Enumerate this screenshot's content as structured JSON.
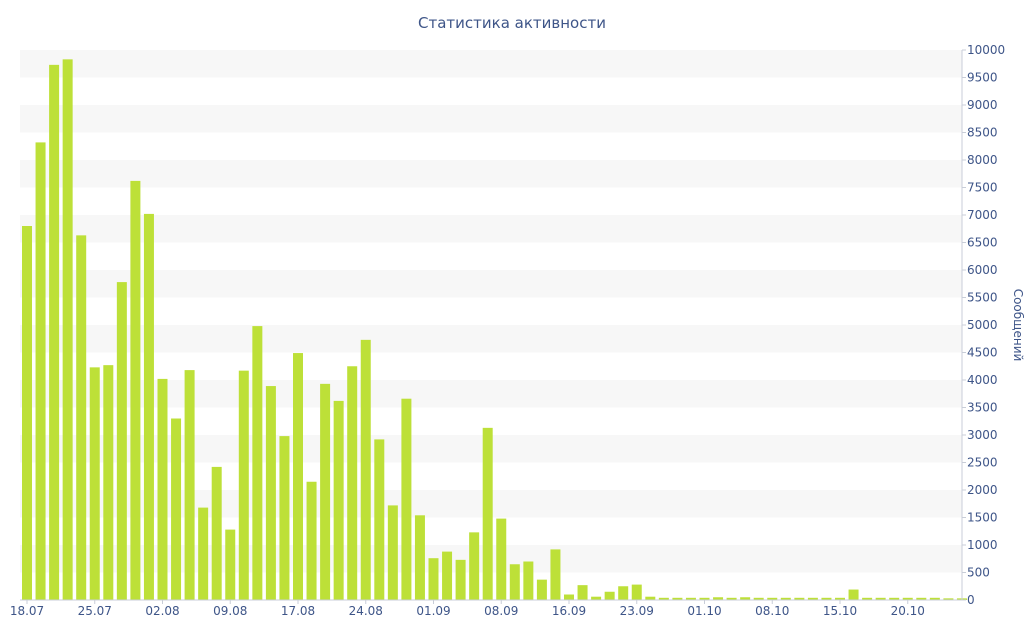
{
  "chart_data": {
    "type": "bar",
    "title": "Статистика активности",
    "ylabel": "Сообщений",
    "xlabel": "",
    "ylim": [
      0,
      10000
    ],
    "yticks": [
      0,
      500,
      1000,
      1500,
      2000,
      2500,
      3000,
      3500,
      4000,
      4500,
      5000,
      5500,
      6000,
      6500,
      7000,
      7500,
      8000,
      8500,
      9000,
      9500,
      10000
    ],
    "y_axis_side": "right",
    "grid": "alternating horizontal bands",
    "bar_color": "#bde038",
    "band_color": "#f7f7f7",
    "text_color": "#3e5588",
    "x_tick_labels": [
      {
        "label": "18.07",
        "index": 0
      },
      {
        "label": "25.07",
        "index": 5
      },
      {
        "label": "02.08",
        "index": 10
      },
      {
        "label": "09.08",
        "index": 15
      },
      {
        "label": "17.08",
        "index": 20
      },
      {
        "label": "24.08",
        "index": 25
      },
      {
        "label": "01.09",
        "index": 30
      },
      {
        "label": "08.09",
        "index": 35
      },
      {
        "label": "16.09",
        "index": 40
      },
      {
        "label": "23.09",
        "index": 45
      },
      {
        "label": "01.10",
        "index": 50
      },
      {
        "label": "08.10",
        "index": 55
      },
      {
        "label": "15.10",
        "index": 60
      },
      {
        "label": "20.10",
        "index": 65
      }
    ],
    "values": [
      6800,
      8320,
      9730,
      9830,
      6630,
      4230,
      4270,
      5780,
      7620,
      7020,
      4020,
      3300,
      4180,
      1680,
      2420,
      1280,
      4170,
      4980,
      3890,
      2980,
      4490,
      2150,
      3930,
      3620,
      4250,
      4730,
      2920,
      1720,
      3660,
      1540,
      760,
      880,
      730,
      1230,
      3130,
      1480,
      650,
      700,
      370,
      920,
      100,
      270,
      60,
      150,
      250,
      280,
      60,
      40,
      40,
      40,
      40,
      50,
      40,
      50,
      40,
      40,
      40,
      40,
      40,
      40,
      40,
      190,
      40,
      40,
      40,
      40,
      40,
      40,
      30,
      30
    ]
  }
}
